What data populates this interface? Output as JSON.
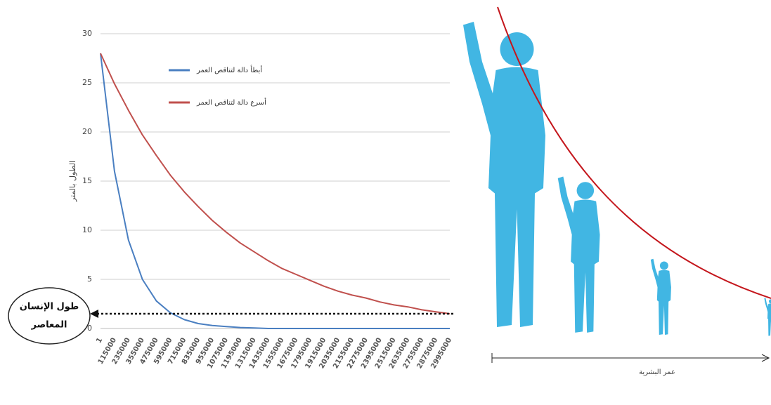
{
  "chart_data": {
    "type": "line",
    "y_label": "الطول بالمتر",
    "categories": [
      "1",
      "115000",
      "235000",
      "355000",
      "475000",
      "595000",
      "715000",
      "835000",
      "955000",
      "1075000",
      "1195000",
      "1315000",
      "1435000",
      "1555000",
      "1675000",
      "1795000",
      "1915000",
      "2035000",
      "2155000",
      "2275000",
      "2395000",
      "2515000",
      "2635000",
      "2755000",
      "2875000",
      "2995000"
    ],
    "series": [
      {
        "name": "أبطأ دالة لتناقص العمر",
        "color": "#4a7fc1",
        "values": [
          28,
          16,
          9,
          5,
          2.8,
          1.6,
          0.9,
          0.5,
          0.3,
          0.2,
          0.1,
          0.05,
          0,
          0,
          0,
          0,
          0,
          0,
          0,
          0,
          0,
          0,
          0,
          0,
          0,
          0
        ]
      },
      {
        "name": "أسرع دالة لتناقص العمر",
        "color": "#c0504d",
        "values": [
          28,
          24.9,
          22.2,
          19.7,
          17.6,
          15.6,
          13.9,
          12.4,
          11,
          9.8,
          8.7,
          7.8,
          6.9,
          6.1,
          5.5,
          4.9,
          4.3,
          3.8,
          3.4,
          3.1,
          2.7,
          2.4,
          2.2,
          1.9,
          1.7,
          1.5
        ]
      }
    ],
    "ylim": [
      0,
      30
    ],
    "yticks": [
      0,
      5,
      10,
      15,
      20,
      25,
      30
    ],
    "grid": true,
    "annotation": {
      "lines": [
        "طول الإنسان",
        "المعاصر"
      ],
      "value": 1.5
    },
    "figure_axis_label": "عمر البشرية"
  }
}
